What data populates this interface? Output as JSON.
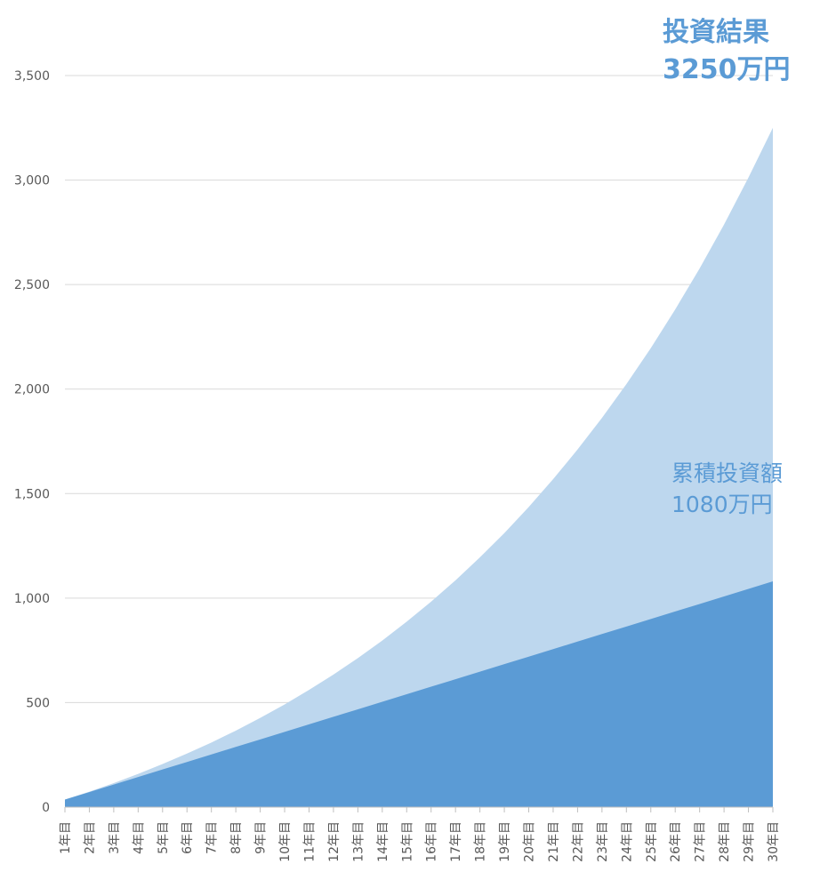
{
  "chart_data": {
    "type": "area",
    "categories": [
      "1年目",
      "2年目",
      "3年目",
      "4年目",
      "5年目",
      "6年目",
      "7年目",
      "8年目",
      "9年目",
      "10年目",
      "11年目",
      "12年目",
      "13年目",
      "14年目",
      "15年目",
      "16年目",
      "17年目",
      "18年目",
      "19年目",
      "20年目",
      "21年目",
      "22年目",
      "23年目",
      "24年目",
      "25年目",
      "26年目",
      "27年目",
      "28年目",
      "29年目",
      "30年目"
    ],
    "series": [
      {
        "color": "#bdd7ee",
        "values": [
          36,
          74,
          115,
          159,
          206,
          256,
          309,
          366,
          427,
          491,
          561,
          634,
          713,
          797,
          887,
          983,
          1085,
          1195,
          1311,
          1436,
          1569,
          1711,
          1862,
          2024,
          2196,
          2381,
          2577,
          2787,
          3012,
          3250
        ]
      },
      {
        "color": "#5b9bd5",
        "values": [
          36,
          72,
          108,
          144,
          180,
          216,
          252,
          288,
          324,
          360,
          396,
          432,
          468,
          504,
          540,
          576,
          612,
          648,
          684,
          720,
          756,
          792,
          828,
          864,
          900,
          936,
          972,
          1008,
          1044,
          1080
        ]
      }
    ],
    "ylim": [
      0,
      3500
    ],
    "yticks": [
      0,
      500,
      {
        "value": 1000,
        "label": "1,000"
      },
      {
        "value": 1500,
        "label": "1,500"
      },
      {
        "value": 2000,
        "label": "2,000"
      },
      {
        "value": 2500,
        "label": "2,500"
      },
      {
        "value": 3000,
        "label": "3,000"
      },
      {
        "value": 3500,
        "label": "3,500"
      }
    ],
    "grid": true,
    "annotations": [
      {
        "lines": [
          "投資結果",
          "3250万円"
        ],
        "color": "#5b9bd5",
        "bold": true
      },
      {
        "lines": [
          "累積投資額",
          "1080万円"
        ],
        "color": "#5b9bd5",
        "bold": false
      }
    ]
  }
}
